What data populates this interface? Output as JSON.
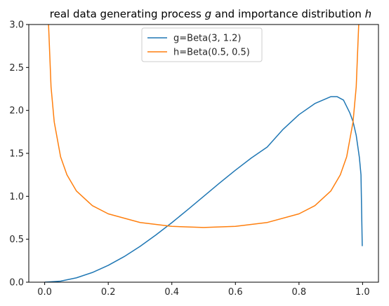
{
  "chart_data": {
    "type": "line",
    "title_main": "real data generating process ",
    "title_g": "g",
    "title_mid": " and importance distribution ",
    "title_h": "h",
    "xlabel": "",
    "ylabel": "",
    "xlim": [
      -0.05,
      1.05
    ],
    "ylim": [
      0,
      3
    ],
    "x_ticks": [
      0.0,
      0.2,
      0.4,
      0.6,
      0.8,
      1.0
    ],
    "x_tick_labels": [
      "0.0",
      "0.2",
      "0.4",
      "0.6",
      "0.8",
      "1.0"
    ],
    "y_ticks": [
      0.0,
      0.5,
      1.0,
      1.5,
      2.0,
      2.5,
      3.0
    ],
    "y_tick_labels": [
      "0.0",
      "0.5",
      "1.0",
      "1.5",
      "2.0",
      "2.5",
      "3.0"
    ],
    "grid": false,
    "legend_position": "top-center",
    "series": [
      {
        "name": "g=Beta(3, 1.2)",
        "color": "#1f77b4",
        "x": [
          0.0,
          0.05,
          0.1,
          0.15,
          0.2,
          0.25,
          0.3,
          0.35,
          0.4,
          0.45,
          0.5,
          0.55,
          0.6,
          0.65,
          0.7,
          0.75,
          0.8,
          0.85,
          0.9,
          0.92,
          0.94,
          0.96,
          0.97,
          0.98,
          0.99,
          0.995,
          0.999
        ],
        "y": [
          0.0,
          0.012,
          0.051,
          0.113,
          0.196,
          0.298,
          0.417,
          0.55,
          0.693,
          0.844,
          0.999,
          1.154,
          1.304,
          1.446,
          1.573,
          1.78,
          1.951,
          2.08,
          2.16,
          2.16,
          2.12,
          1.97,
          1.87,
          1.71,
          1.45,
          1.25,
          0.42
        ]
      },
      {
        "name": "h=Beta(0.5, 0.5)",
        "color": "#ff7f0e",
        "x": [
          0.01,
          0.02,
          0.03,
          0.05,
          0.07,
          0.1,
          0.15,
          0.2,
          0.3,
          0.4,
          0.5,
          0.6,
          0.7,
          0.8,
          0.85,
          0.9,
          0.93,
          0.95,
          0.97,
          0.98,
          0.99
        ],
        "y": [
          3.2,
          2.274,
          1.866,
          1.46,
          1.25,
          1.061,
          0.891,
          0.796,
          0.695,
          0.65,
          0.637,
          0.65,
          0.695,
          0.796,
          0.891,
          1.061,
          1.25,
          1.46,
          1.866,
          2.274,
          3.2
        ]
      }
    ]
  }
}
